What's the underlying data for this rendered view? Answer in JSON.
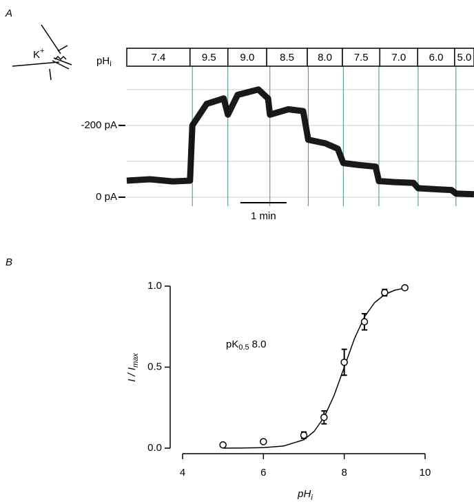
{
  "chart_data": [
    {
      "type": "trace",
      "panel_label": "A",
      "icon_label": "K",
      "icon_sup": "+",
      "bar_label": "pH",
      "bar_label_sub": "i",
      "segments": [
        {
          "label": "7.4",
          "start": 0,
          "end": 1.37
        },
        {
          "label": "9.5",
          "start": 1.37,
          "end": 2.19
        },
        {
          "label": "9.0",
          "start": 2.19,
          "end": 3.03
        },
        {
          "label": "8.5",
          "start": 3.03,
          "end": 3.91
        },
        {
          "label": "8.0",
          "start": 3.91,
          "end": 4.67
        },
        {
          "label": "7.5",
          "start": 4.67,
          "end": 5.48
        },
        {
          "label": "7.0",
          "start": 5.48,
          "end": 6.3
        },
        {
          "label": "6.0",
          "start": 6.3,
          "end": 7.1
        },
        {
          "label": "5.0",
          "start": 7.1,
          "end": 7.52
        }
      ],
      "solution_changes": [
        1.42,
        2.19,
        3.1,
        3.93,
        4.69,
        5.46,
        6.31,
        7.13
      ],
      "x": [
        0,
        0.5,
        1.0,
        1.37,
        1.42,
        1.73,
        2.1,
        2.19,
        2.4,
        2.85,
        3.06,
        3.1,
        3.5,
        3.82,
        3.93,
        4.3,
        4.57,
        4.69,
        5.0,
        5.39,
        5.46,
        5.8,
        6.21,
        6.31,
        6.7,
        7.03,
        7.13,
        7.52
      ],
      "values": [
        -46,
        -50,
        -44,
        -46,
        -200,
        -260,
        -275,
        -230,
        -285,
        -300,
        -275,
        -230,
        -245,
        -240,
        -160,
        -150,
        -135,
        -95,
        -90,
        -85,
        -45,
        -42,
        -40,
        -25,
        -22,
        -20,
        -10,
        -8
      ],
      "xlim": [
        0,
        7.52
      ],
      "ylim": [
        25,
        -365
      ],
      "yticks": [
        {
          "value": -200,
          "label": "-200 pA"
        },
        {
          "value": 0,
          "label": "0 pA"
        }
      ],
      "gridlines": [
        -300,
        -200,
        -100,
        0
      ],
      "scalebar": {
        "start": 2.46,
        "length": 1,
        "label": "1 min"
      },
      "color": "#000000",
      "change_color": "#3f8f8c"
    },
    {
      "type": "scatter",
      "panel_label": "B",
      "x": [
        5,
        6,
        7,
        7.5,
        8,
        8.5,
        9,
        9.5
      ],
      "values": [
        0.02,
        0.04,
        0.08,
        0.19,
        0.53,
        0.78,
        0.96,
        0.99
      ],
      "errors": [
        0,
        0,
        0.02,
        0.04,
        0.08,
        0.05,
        0.02,
        0
      ],
      "fit": {
        "x": [
          5,
          5.5,
          6,
          6.5,
          7,
          7.25,
          7.5,
          7.75,
          8,
          8.25,
          8.5,
          8.75,
          9,
          9.25,
          9.5
        ],
        "values": [
          0.0002,
          0.0007,
          0.003,
          0.013,
          0.052,
          0.102,
          0.19,
          0.326,
          0.5,
          0.674,
          0.81,
          0.898,
          0.948,
          0.975,
          0.988
        ]
      },
      "xlim": [
        4,
        10
      ],
      "xticks": [
        4,
        6,
        8,
        10
      ],
      "ylim": [
        0,
        1
      ],
      "yticks": [
        {
          "value": 0,
          "label": "0.0"
        },
        {
          "value": 0.5,
          "label": "0.5"
        },
        {
          "value": 1,
          "label": "1.0"
        }
      ],
      "xlabel": "pH",
      "xlabel_sub": "i",
      "ylabel": "I / I",
      "ylabel_sub": "max",
      "annotation": "pK",
      "annotation_sub": "0.5",
      "annotation_value": "8.0",
      "color": "#000000"
    }
  ]
}
